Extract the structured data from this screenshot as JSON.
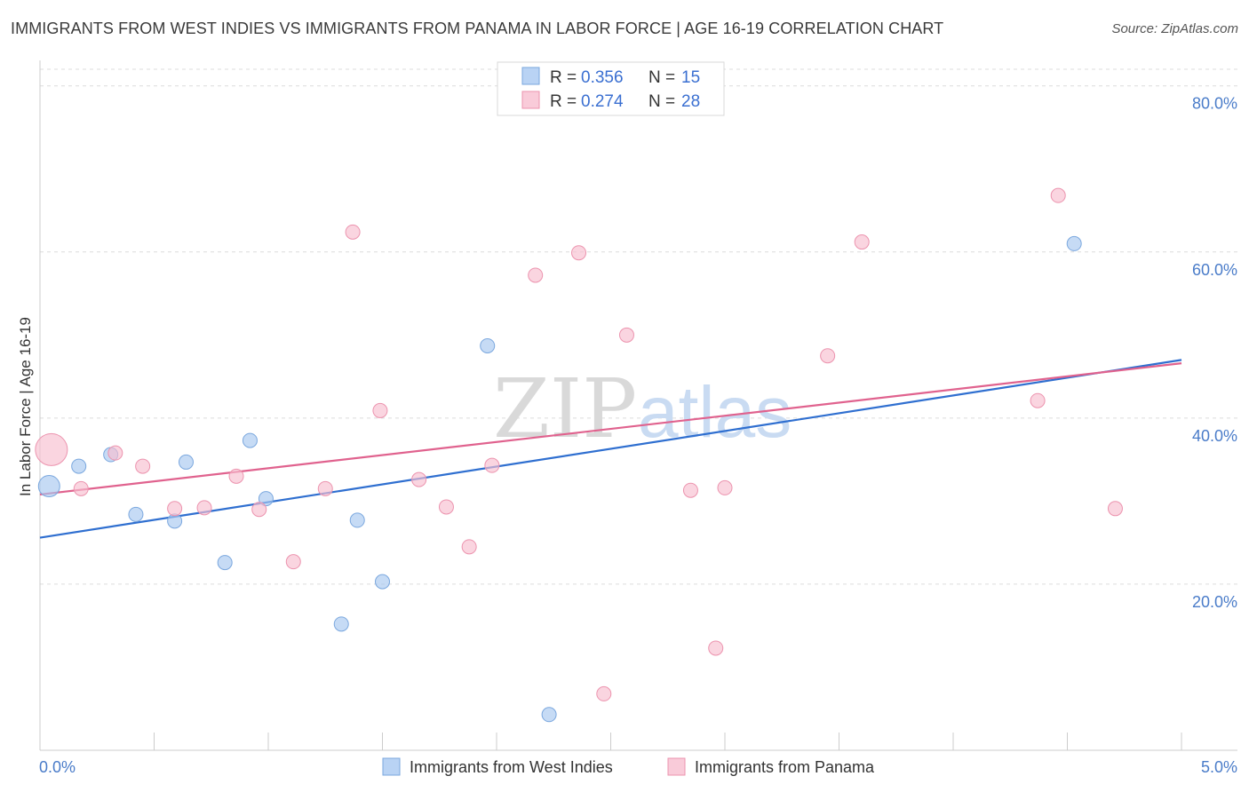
{
  "header": {
    "title": "IMMIGRANTS FROM WEST INDIES VS IMMIGRANTS FROM PANAMA IN LABOR FORCE | AGE 16-19 CORRELATION CHART",
    "source": "Source: ZipAtlas.com"
  },
  "watermark": {
    "zip": "ZIP",
    "atlas": "atlas"
  },
  "legend": {
    "r_label": "R =",
    "n_label": "N =",
    "series": [
      {
        "r": "0.356",
        "n": "15"
      },
      {
        "r": "0.274",
        "n": "28"
      }
    ]
  },
  "chart_data": {
    "type": "scatter",
    "title": "IMMIGRANTS FROM WEST INDIES VS IMMIGRANTS FROM PANAMA IN LABOR FORCE | AGE 16-19 CORRELATION CHART",
    "xlabel": "",
    "ylabel": "In Labor Force | Age 16-19",
    "xlim": [
      0,
      5
    ],
    "ylim": [
      0,
      82
    ],
    "x_tick_labels": [
      "0.0%",
      "5.0%"
    ],
    "y_ticks": [
      20,
      40,
      60,
      80
    ],
    "y_tick_labels": [
      "20.0%",
      "40.0%",
      "60.0%",
      "80.0%"
    ],
    "grid": true,
    "legend_position": "top-center",
    "series": [
      {
        "name": "Immigrants from West Indies",
        "color": "#a8c8f0",
        "stroke": "#7aa7de",
        "line_color": "#2f6fd0",
        "r": 0.356,
        "n": 15,
        "trend": [
          [
            0,
            25.6
          ],
          [
            5,
            47.0
          ]
        ],
        "points": [
          {
            "x": 0.04,
            "y": 31.8,
            "big": true
          },
          {
            "x": 0.17,
            "y": 34.2
          },
          {
            "x": 0.31,
            "y": 35.6
          },
          {
            "x": 0.42,
            "y": 28.4
          },
          {
            "x": 0.59,
            "y": 27.6
          },
          {
            "x": 0.64,
            "y": 34.7
          },
          {
            "x": 0.81,
            "y": 22.6
          },
          {
            "x": 0.92,
            "y": 37.3
          },
          {
            "x": 0.99,
            "y": 30.3
          },
          {
            "x": 1.32,
            "y": 15.2
          },
          {
            "x": 1.39,
            "y": 27.7
          },
          {
            "x": 1.5,
            "y": 20.3
          },
          {
            "x": 1.96,
            "y": 48.7
          },
          {
            "x": 2.23,
            "y": 4.3
          },
          {
            "x": 4.53,
            "y": 61.0
          }
        ]
      },
      {
        "name": "Immigrants from Panama",
        "color": "#f7bfd0",
        "stroke": "#ec93ae",
        "line_color": "#e0628e",
        "r": 0.274,
        "n": 28,
        "trend": [
          [
            0,
            30.8
          ],
          [
            5,
            46.6
          ]
        ],
        "points": [
          {
            "x": 0.05,
            "y": 36.2,
            "big": true
          },
          {
            "x": 0.18,
            "y": 31.5
          },
          {
            "x": 0.33,
            "y": 35.8
          },
          {
            "x": 0.45,
            "y": 34.2
          },
          {
            "x": 0.59,
            "y": 29.1
          },
          {
            "x": 0.72,
            "y": 29.2
          },
          {
            "x": 0.86,
            "y": 33.0
          },
          {
            "x": 0.96,
            "y": 29.0
          },
          {
            "x": 1.11,
            "y": 22.7
          },
          {
            "x": 1.25,
            "y": 31.5
          },
          {
            "x": 1.37,
            "y": 62.4
          },
          {
            "x": 1.49,
            "y": 40.9
          },
          {
            "x": 1.66,
            "y": 32.6
          },
          {
            "x": 1.78,
            "y": 29.3
          },
          {
            "x": 1.88,
            "y": 24.5
          },
          {
            "x": 1.98,
            "y": 34.3
          },
          {
            "x": 2.17,
            "y": 57.2
          },
          {
            "x": 2.36,
            "y": 59.9
          },
          {
            "x": 2.47,
            "y": 6.8
          },
          {
            "x": 2.57,
            "y": 50.0
          },
          {
            "x": 2.85,
            "y": 31.3
          },
          {
            "x": 2.96,
            "y": 12.3
          },
          {
            "x": 3.0,
            "y": 31.6
          },
          {
            "x": 3.45,
            "y": 47.5
          },
          {
            "x": 3.6,
            "y": 61.2
          },
          {
            "x": 4.37,
            "y": 42.1
          },
          {
            "x": 4.46,
            "y": 66.8
          },
          {
            "x": 4.71,
            "y": 29.1
          }
        ]
      }
    ]
  }
}
